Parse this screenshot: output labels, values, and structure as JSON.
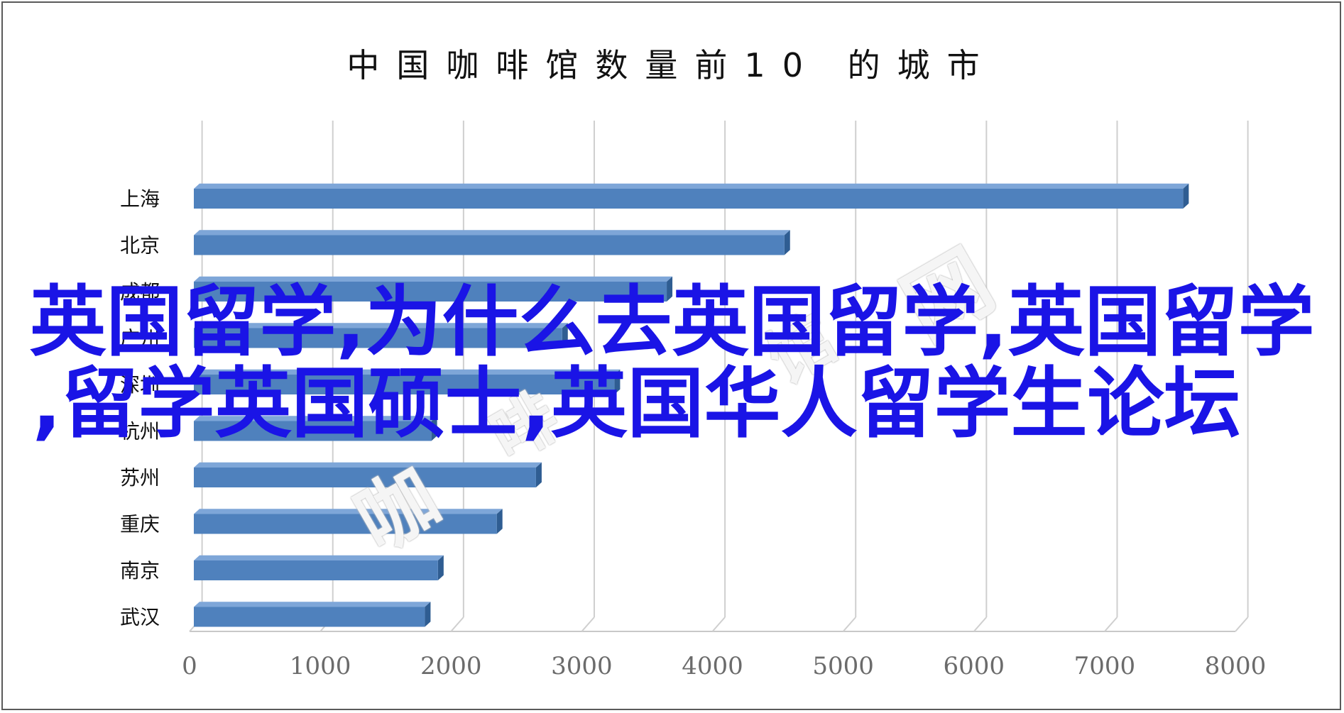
{
  "chart_data": {
    "type": "bar",
    "orientation": "horizontal",
    "title": "中国咖啡馆数量前10 的城市",
    "categories": [
      "上海",
      "北京",
      "成都",
      "广州",
      "深圳",
      "杭州",
      "苏州",
      "重庆",
      "南京",
      "武汉"
    ],
    "values": [
      7600,
      4550,
      3650,
      2850,
      3250,
      1850,
      2650,
      2350,
      1900,
      1800
    ],
    "xlim": [
      0,
      8000
    ],
    "xticks": [
      "0",
      "1000",
      "2000",
      "3000",
      "4000",
      "5000",
      "6000",
      "7000",
      "8000"
    ],
    "grid": true,
    "bar_color": "#4f81bd"
  },
  "overlay": {
    "line1": "英国留学,为什么去英国留学,英国留学",
    "line2": ",留学英国硕士,英国华人留学生论坛"
  },
  "watermark": {
    "chars": [
      "咖",
      "啡",
      "馆",
      "网"
    ]
  }
}
